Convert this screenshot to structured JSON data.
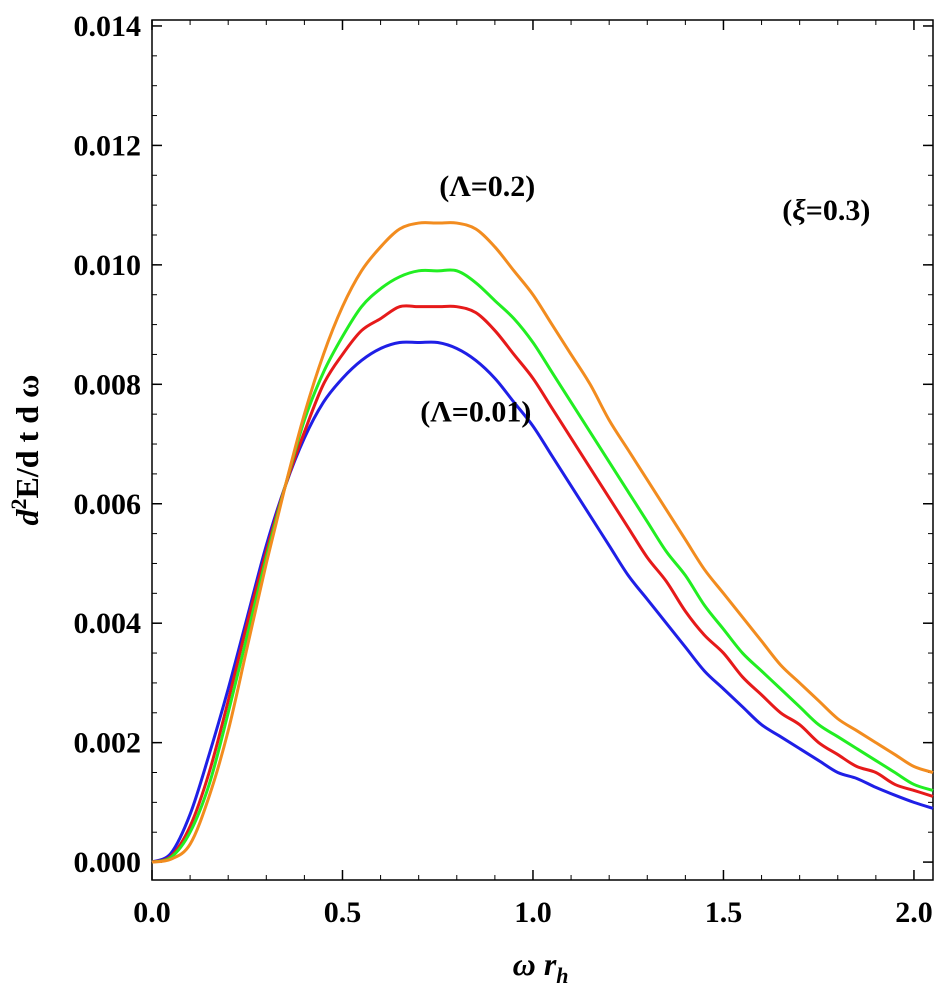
{
  "chart_data": {
    "type": "line",
    "xlabel": {
      "main": "ω r",
      "sub": "h"
    },
    "ylabel": {
      "sup_base": "d",
      "sup": "2",
      "rest": "E/d t d ω"
    },
    "xlim": [
      0,
      2.05
    ],
    "ylim": [
      -0.0003,
      0.0141
    ],
    "x_ticks": [
      {
        "value": 0.0,
        "label": "0.0"
      },
      {
        "value": 0.5,
        "label": "0.5"
      },
      {
        "value": 1.0,
        "label": "1.0"
      },
      {
        "value": 1.5,
        "label": "1.5"
      },
      {
        "value": 2.0,
        "label": "2.0"
      }
    ],
    "y_ticks": [
      {
        "value": 0.0,
        "label": "0.000"
      },
      {
        "value": 0.002,
        "label": "0.002"
      },
      {
        "value": 0.004,
        "label": "0.004"
      },
      {
        "value": 0.006,
        "label": "0.006"
      },
      {
        "value": 0.008,
        "label": "0.008"
      },
      {
        "value": 0.01,
        "label": "0.010"
      },
      {
        "value": 0.012,
        "label": "0.012"
      },
      {
        "value": 0.014,
        "label": "0.014"
      }
    ],
    "x_minor_step": 0.1,
    "y_minor_step": 0.0005,
    "grid": false,
    "x": [
      0.0,
      0.05,
      0.1,
      0.15,
      0.2,
      0.25,
      0.3,
      0.35,
      0.4,
      0.45,
      0.5,
      0.55,
      0.6,
      0.65,
      0.7,
      0.75,
      0.8,
      0.85,
      0.9,
      0.95,
      1.0,
      1.05,
      1.1,
      1.15,
      1.2,
      1.25,
      1.3,
      1.35,
      1.4,
      1.45,
      1.5,
      1.55,
      1.6,
      1.65,
      1.7,
      1.75,
      1.8,
      1.85,
      1.9,
      1.95,
      2.0,
      2.05
    ],
    "series": [
      {
        "color": "#1f1fe6",
        "values": [
          0.0,
          0.00015,
          0.0008,
          0.0018,
          0.0029,
          0.0041,
          0.0053,
          0.0063,
          0.0071,
          0.0077,
          0.0081,
          0.0084,
          0.0086,
          0.0087,
          0.0087,
          0.0087,
          0.0086,
          0.0084,
          0.0081,
          0.0077,
          0.0073,
          0.0068,
          0.0063,
          0.0058,
          0.0053,
          0.0048,
          0.0044,
          0.004,
          0.0036,
          0.0032,
          0.0029,
          0.0026,
          0.0023,
          0.0021,
          0.0019,
          0.0017,
          0.0015,
          0.0014,
          0.00125,
          0.00112,
          0.001,
          0.0009
        ]
      },
      {
        "color": "#e61a1a",
        "values": [
          0.0,
          0.0001,
          0.0006,
          0.0015,
          0.0027,
          0.004,
          0.0052,
          0.0063,
          0.0072,
          0.008,
          0.0085,
          0.0089,
          0.0091,
          0.0093,
          0.0093,
          0.0093,
          0.0093,
          0.0092,
          0.0089,
          0.0085,
          0.0081,
          0.0076,
          0.0071,
          0.0066,
          0.0061,
          0.0056,
          0.0051,
          0.0047,
          0.0042,
          0.0038,
          0.0035,
          0.0031,
          0.0028,
          0.0025,
          0.0023,
          0.002,
          0.0018,
          0.0016,
          0.0015,
          0.0013,
          0.0012,
          0.0011
        ]
      },
      {
        "color": "#22ee22",
        "values": [
          0.0,
          8e-05,
          0.0005,
          0.0013,
          0.0025,
          0.0038,
          0.0051,
          0.0063,
          0.0074,
          0.0082,
          0.0088,
          0.0093,
          0.0096,
          0.0098,
          0.0099,
          0.0099,
          0.0099,
          0.0097,
          0.0094,
          0.0091,
          0.0087,
          0.0082,
          0.0077,
          0.0072,
          0.0067,
          0.0062,
          0.0057,
          0.0052,
          0.0048,
          0.0043,
          0.0039,
          0.0035,
          0.0032,
          0.0029,
          0.0026,
          0.0023,
          0.0021,
          0.0019,
          0.0017,
          0.0015,
          0.0013,
          0.0012
        ]
      },
      {
        "color": "#f28c1f",
        "values": [
          0.0,
          5e-05,
          0.0003,
          0.0011,
          0.0022,
          0.0036,
          0.005,
          0.0063,
          0.0075,
          0.0085,
          0.0093,
          0.0099,
          0.0103,
          0.0106,
          0.0107,
          0.0107,
          0.0107,
          0.0106,
          0.0103,
          0.0099,
          0.0095,
          0.009,
          0.0085,
          0.008,
          0.0074,
          0.0069,
          0.0064,
          0.0059,
          0.0054,
          0.0049,
          0.0045,
          0.0041,
          0.0037,
          0.0033,
          0.003,
          0.0027,
          0.0024,
          0.0022,
          0.002,
          0.0018,
          0.0016,
          0.0015
        ]
      }
    ],
    "annotations": [
      {
        "id": "lambda-top",
        "text": "(Λ=0.2)",
        "x": 0.88,
        "y": 0.01115
      },
      {
        "id": "lambda-bottom",
        "text": "(Λ=0.01)",
        "x": 0.85,
        "y": 0.00738
      },
      {
        "id": "xi",
        "pre": "(",
        "sym": "ξ",
        "post": "=0.3)",
        "x": 1.77,
        "y": 0.01075
      }
    ]
  }
}
